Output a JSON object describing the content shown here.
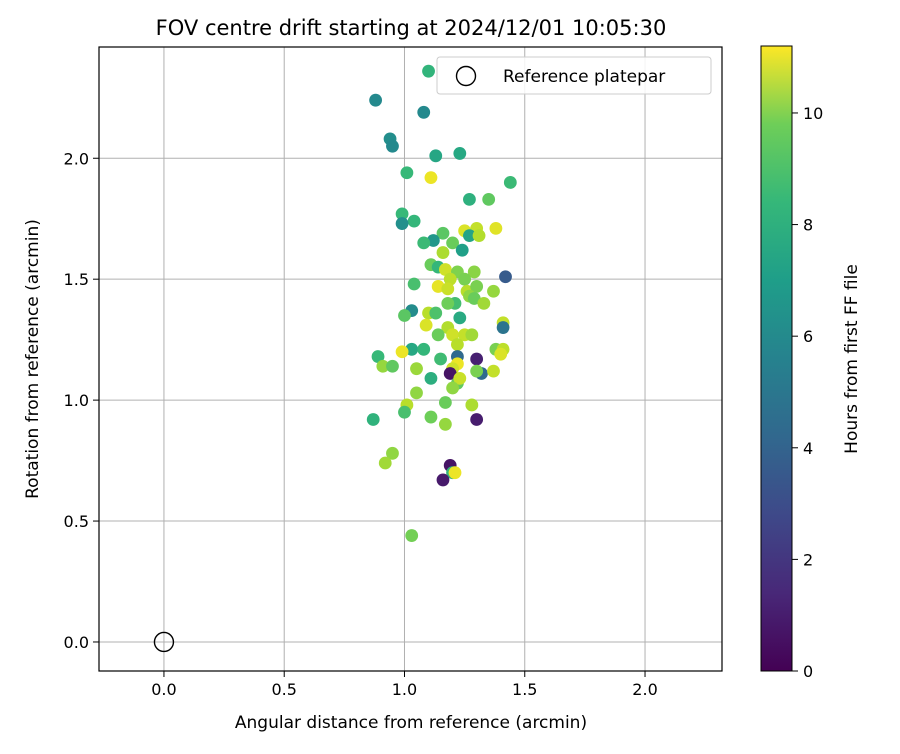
{
  "chart_data": {
    "type": "scatter",
    "title": "FOV centre drift starting at 2024/12/01 10:05:30",
    "xlabel": "Angular distance from reference (arcmin)",
    "ylabel": "Rotation from reference (arcmin)",
    "xlim": [
      -0.27,
      2.32
    ],
    "ylim": [
      -0.12,
      2.46
    ],
    "xticks": [
      0.0,
      0.5,
      1.0,
      1.5,
      2.0
    ],
    "yticks": [
      0.0,
      0.5,
      1.0,
      1.5,
      2.0
    ],
    "xtick_labels": [
      "0.0",
      "0.5",
      "1.0",
      "1.5",
      "2.0"
    ],
    "ytick_labels": [
      "0.0",
      "0.5",
      "1.0",
      "1.5",
      "2.0"
    ],
    "grid": true,
    "legend": {
      "placement": "top-right",
      "label": "Reference platepar"
    },
    "reference": {
      "x": 0.0,
      "y": 0.0
    },
    "colorbar": {
      "label": "Hours from first FF file",
      "range": [
        0,
        11.2
      ],
      "ticks": [
        0,
        2,
        4,
        6,
        8,
        10
      ],
      "tick_labels": [
        "0",
        "2",
        "4",
        "6",
        "8",
        "10"
      ],
      "colormap": "viridis"
    },
    "points": [
      {
        "x": 0.88,
        "y": 2.24,
        "h": 5.3
      },
      {
        "x": 1.08,
        "y": 2.19,
        "h": 5.3
      },
      {
        "x": 0.94,
        "y": 2.08,
        "h": 5.5
      },
      {
        "x": 0.95,
        "y": 2.05,
        "h": 5.3
      },
      {
        "x": 1.13,
        "y": 2.01,
        "h": 6.6
      },
      {
        "x": 1.23,
        "y": 2.02,
        "h": 6.7
      },
      {
        "x": 1.1,
        "y": 2.36,
        "h": 7.3
      },
      {
        "x": 1.01,
        "y": 1.94,
        "h": 7.5
      },
      {
        "x": 1.11,
        "y": 1.92,
        "h": 10.9
      },
      {
        "x": 1.44,
        "y": 1.9,
        "h": 7.6
      },
      {
        "x": 1.27,
        "y": 1.83,
        "h": 7.1
      },
      {
        "x": 1.35,
        "y": 1.83,
        "h": 8.4
      },
      {
        "x": 0.99,
        "y": 1.77,
        "h": 7.5
      },
      {
        "x": 1.04,
        "y": 1.74,
        "h": 7.4
      },
      {
        "x": 0.99,
        "y": 1.73,
        "h": 5.6
      },
      {
        "x": 1.16,
        "y": 1.69,
        "h": 8.3
      },
      {
        "x": 1.25,
        "y": 1.7,
        "h": 10.6
      },
      {
        "x": 1.3,
        "y": 1.71,
        "h": 10.2
      },
      {
        "x": 1.38,
        "y": 1.71,
        "h": 10.7
      },
      {
        "x": 1.27,
        "y": 1.68,
        "h": 6.5
      },
      {
        "x": 1.31,
        "y": 1.68,
        "h": 9.9
      },
      {
        "x": 1.12,
        "y": 1.66,
        "h": 5.9
      },
      {
        "x": 1.08,
        "y": 1.65,
        "h": 7.6
      },
      {
        "x": 1.2,
        "y": 1.65,
        "h": 8.6
      },
      {
        "x": 1.24,
        "y": 1.62,
        "h": 6.3
      },
      {
        "x": 1.16,
        "y": 1.61,
        "h": 9.8
      },
      {
        "x": 1.11,
        "y": 1.56,
        "h": 8.6
      },
      {
        "x": 1.14,
        "y": 1.55,
        "h": 7.4
      },
      {
        "x": 1.17,
        "y": 1.54,
        "h": 10.4
      },
      {
        "x": 1.22,
        "y": 1.53,
        "h": 9.0
      },
      {
        "x": 1.29,
        "y": 1.53,
        "h": 9.2
      },
      {
        "x": 1.42,
        "y": 1.51,
        "h": 3.2
      },
      {
        "x": 1.25,
        "y": 1.5,
        "h": 8.9
      },
      {
        "x": 1.19,
        "y": 1.5,
        "h": 10.1
      },
      {
        "x": 1.04,
        "y": 1.48,
        "h": 7.9
      },
      {
        "x": 1.14,
        "y": 1.47,
        "h": 10.8
      },
      {
        "x": 1.18,
        "y": 1.46,
        "h": 10.3
      },
      {
        "x": 1.26,
        "y": 1.45,
        "h": 10.0
      },
      {
        "x": 1.3,
        "y": 1.47,
        "h": 8.9
      },
      {
        "x": 1.37,
        "y": 1.45,
        "h": 9.4
      },
      {
        "x": 1.27,
        "y": 1.43,
        "h": 9.3
      },
      {
        "x": 1.29,
        "y": 1.42,
        "h": 8.6
      },
      {
        "x": 1.21,
        "y": 1.4,
        "h": 7.8
      },
      {
        "x": 1.18,
        "y": 1.4,
        "h": 8.7
      },
      {
        "x": 1.33,
        "y": 1.4,
        "h": 9.6
      },
      {
        "x": 1.03,
        "y": 1.37,
        "h": 5.4
      },
      {
        "x": 1.0,
        "y": 1.35,
        "h": 8.3
      },
      {
        "x": 1.1,
        "y": 1.36,
        "h": 10.0
      },
      {
        "x": 1.13,
        "y": 1.36,
        "h": 8.0
      },
      {
        "x": 1.23,
        "y": 1.34,
        "h": 6.8
      },
      {
        "x": 1.41,
        "y": 1.32,
        "h": 10.2
      },
      {
        "x": 1.09,
        "y": 1.31,
        "h": 10.6
      },
      {
        "x": 1.18,
        "y": 1.3,
        "h": 9.9
      },
      {
        "x": 1.2,
        "y": 1.27,
        "h": 10.4
      },
      {
        "x": 1.25,
        "y": 1.27,
        "h": 10.2
      },
      {
        "x": 1.14,
        "y": 1.27,
        "h": 8.6
      },
      {
        "x": 1.28,
        "y": 1.27,
        "h": 9.6
      },
      {
        "x": 1.41,
        "y": 1.3,
        "h": 4.3
      },
      {
        "x": 1.22,
        "y": 1.23,
        "h": 10.0
      },
      {
        "x": 1.03,
        "y": 1.21,
        "h": 6.7
      },
      {
        "x": 0.99,
        "y": 1.2,
        "h": 10.9
      },
      {
        "x": 1.08,
        "y": 1.21,
        "h": 7.4
      },
      {
        "x": 1.38,
        "y": 1.21,
        "h": 8.9
      },
      {
        "x": 1.41,
        "y": 1.21,
        "h": 10.1
      },
      {
        "x": 1.4,
        "y": 1.19,
        "h": 10.6
      },
      {
        "x": 0.89,
        "y": 1.18,
        "h": 7.5
      },
      {
        "x": 1.15,
        "y": 1.17,
        "h": 7.7
      },
      {
        "x": 1.22,
        "y": 1.18,
        "h": 3.8
      },
      {
        "x": 1.3,
        "y": 1.17,
        "h": 1.0
      },
      {
        "x": 1.22,
        "y": 1.15,
        "h": 10.9
      },
      {
        "x": 0.91,
        "y": 1.14,
        "h": 9.4
      },
      {
        "x": 0.95,
        "y": 1.14,
        "h": 8.4
      },
      {
        "x": 1.05,
        "y": 1.13,
        "h": 9.5
      },
      {
        "x": 1.2,
        "y": 1.13,
        "h": 10.4
      },
      {
        "x": 1.19,
        "y": 1.11,
        "h": 0.6
      },
      {
        "x": 1.32,
        "y": 1.11,
        "h": 3.9
      },
      {
        "x": 1.3,
        "y": 1.12,
        "h": 8.9
      },
      {
        "x": 1.37,
        "y": 1.12,
        "h": 10.2
      },
      {
        "x": 1.11,
        "y": 1.09,
        "h": 7.0
      },
      {
        "x": 1.22,
        "y": 1.07,
        "h": 8.5
      },
      {
        "x": 1.23,
        "y": 1.09,
        "h": 10.3
      },
      {
        "x": 1.2,
        "y": 1.05,
        "h": 9.3
      },
      {
        "x": 1.05,
        "y": 1.03,
        "h": 9.3
      },
      {
        "x": 1.17,
        "y": 0.99,
        "h": 8.6
      },
      {
        "x": 1.28,
        "y": 0.98,
        "h": 9.8
      },
      {
        "x": 1.01,
        "y": 0.98,
        "h": 10.0
      },
      {
        "x": 1.0,
        "y": 0.95,
        "h": 7.9
      },
      {
        "x": 0.87,
        "y": 0.92,
        "h": 7.2
      },
      {
        "x": 1.11,
        "y": 0.93,
        "h": 8.7
      },
      {
        "x": 1.3,
        "y": 0.92,
        "h": 0.9
      },
      {
        "x": 1.17,
        "y": 0.9,
        "h": 9.4
      },
      {
        "x": 0.95,
        "y": 0.78,
        "h": 9.3
      },
      {
        "x": 0.92,
        "y": 0.74,
        "h": 9.6
      },
      {
        "x": 1.19,
        "y": 0.73,
        "h": 0.6
      },
      {
        "x": 1.2,
        "y": 0.7,
        "h": 7.3
      },
      {
        "x": 1.21,
        "y": 0.7,
        "h": 10.9
      },
      {
        "x": 1.16,
        "y": 0.67,
        "h": 0.8
      },
      {
        "x": 1.03,
        "y": 0.44,
        "h": 8.8
      }
    ]
  }
}
